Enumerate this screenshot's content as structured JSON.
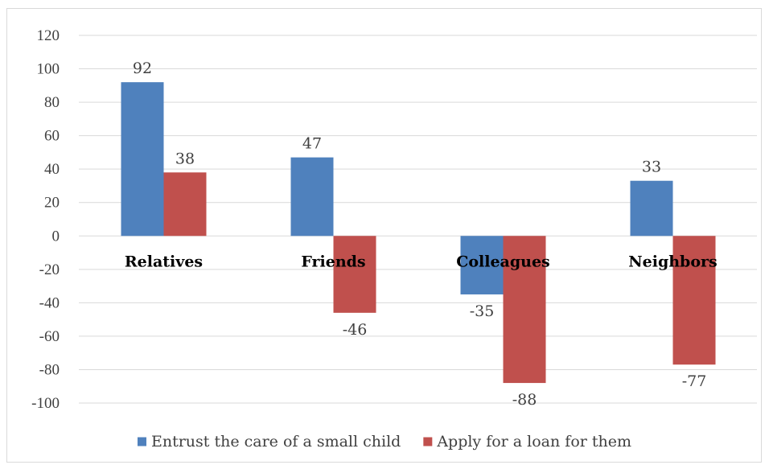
{
  "chart_data": {
    "type": "bar",
    "title": "",
    "xlabel": "",
    "ylabel": "",
    "categories": [
      "Relatives",
      "Friends",
      "Colleagues",
      "Neighbors"
    ],
    "series": [
      {
        "name": "Entrust the care of a small child",
        "values": [
          92,
          47,
          -35,
          33
        ],
        "color": "#4f81bd"
      },
      {
        "name": "Apply for a loan for them",
        "values": [
          38,
          -46,
          -88,
          -77
        ],
        "color": "#c0504d"
      }
    ],
    "ylim": [
      -100,
      120
    ],
    "yticks": [
      120,
      100,
      80,
      60,
      40,
      20,
      0,
      -20,
      -40,
      -60,
      -80,
      -100
    ],
    "grid": true,
    "legend_position": "bottom",
    "data_labels": true
  }
}
